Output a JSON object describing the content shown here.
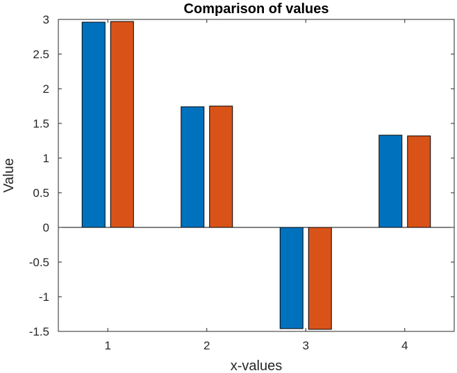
{
  "chart_data": {
    "type": "bar",
    "title": "Comparison of values",
    "xlabel": "x-values",
    "ylabel": "Value",
    "categories": [
      "1",
      "2",
      "3",
      "4"
    ],
    "x": [
      1,
      2,
      3,
      4
    ],
    "xlim": [
      0.5,
      4.5
    ],
    "ylim": [
      -1.5,
      3
    ],
    "yticks": [
      -1.5,
      -1,
      -0.5,
      0,
      0.5,
      1,
      1.5,
      2,
      2.5,
      3
    ],
    "ytick_labels": [
      "-1.5",
      "-1",
      "-0.5",
      "0",
      "0.5",
      "1",
      "1.5",
      "2",
      "2.5",
      "3"
    ],
    "grid": false,
    "legend": "none",
    "series": [
      {
        "values": [
          2.96,
          1.74,
          -1.46,
          1.33
        ],
        "color": "#0072BD"
      },
      {
        "values": [
          2.97,
          1.75,
          -1.47,
          1.32
        ],
        "color": "#D95319"
      }
    ]
  }
}
